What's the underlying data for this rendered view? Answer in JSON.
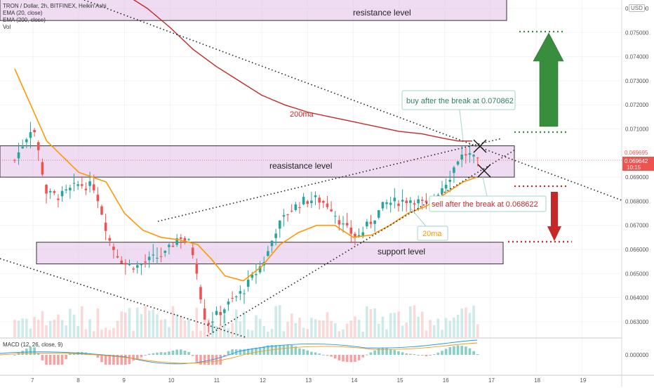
{
  "header": {
    "title": "TRON / Dollar, 2h, BITFINEX, Heikin Ashi",
    "ema20": "EMA (20, close)",
    "ema200": "EMA (200, close)",
    "vol": "Vol",
    "macd": "MACD (12, 26, close, 9)",
    "currency": "USD"
  },
  "annotations": {
    "resistance_top": "resistance level",
    "resistance_mid": "reasistance level",
    "support": "support level",
    "ma200": "200ma",
    "ma20": "20ma",
    "buy": "buy after the break at 0.070862",
    "sell": "sell after the break at 0.068622"
  },
  "price_tags": {
    "last": "0.069695",
    "ma": "0.069642",
    "countdown": "10:15"
  },
  "colors": {
    "up": "#26a69a",
    "down": "#ef5350",
    "ema20": "#ff9800",
    "ema200": "#c62828",
    "zone": "#e1bee7",
    "zone_border": "#333333",
    "arrow_up": "#388e3c",
    "arrow_down": "#c62828"
  },
  "chart_data": [
    {
      "type": "candlestick",
      "title": "TRON / Dollar, 2h, BITFINEX, Heikin Ashi",
      "x_tick_labels": [
        "7",
        "8",
        "9",
        "10",
        "11",
        "12",
        "13",
        "14",
        "15",
        "16",
        "17",
        "18",
        "19"
      ],
      "y_tick_labels": [
        "0.076000",
        "0.075000",
        "0.074000",
        "0.073000",
        "0.072000",
        "0.071000",
        "0.069000",
        "0.068000",
        "0.067000",
        "0.066000",
        "0.065000",
        "0.064000",
        "0.063000"
      ],
      "y_range": [
        0.0623,
        0.0767
      ],
      "anchor_series": {
        "name": "close",
        "x_day": [
          6.6,
          7.0,
          7.3,
          7.6,
          8.0,
          8.35,
          8.7,
          9.0,
          9.3,
          9.6,
          9.9,
          10.2,
          10.45,
          10.6,
          10.7,
          10.8,
          11.2,
          11.6,
          11.9,
          12.1,
          12.3,
          12.6,
          12.9,
          13.2,
          13.5,
          13.8,
          14.1,
          14.4,
          14.7,
          15.0,
          15.3,
          15.6,
          15.9,
          16.1,
          16.3,
          16.5,
          16.7
        ],
        "close": [
          0.0697,
          0.0712,
          0.0683,
          0.0682,
          0.0687,
          0.0686,
          0.0662,
          0.0654,
          0.0653,
          0.0656,
          0.0658,
          0.0666,
          0.0662,
          0.065,
          0.0636,
          0.0629,
          0.0636,
          0.0643,
          0.0651,
          0.0657,
          0.0668,
          0.0676,
          0.068,
          0.0681,
          0.0678,
          0.0669,
          0.0665,
          0.0672,
          0.0679,
          0.068,
          0.0681,
          0.0678,
          0.0685,
          0.069,
          0.0698,
          0.07,
          0.0696
        ]
      },
      "ema20": {
        "x_day": [
          6.6,
          7.3,
          8.0,
          8.6,
          9.0,
          9.4,
          9.8,
          10.2,
          10.6,
          10.9,
          11.2,
          11.6,
          12.0,
          12.4,
          12.8,
          13.2,
          13.6,
          14.0,
          14.4,
          14.8,
          15.2,
          15.6,
          16.0,
          16.4,
          16.7
        ],
        "value": [
          0.0735,
          0.0705,
          0.0692,
          0.0688,
          0.0675,
          0.0668,
          0.0665,
          0.0664,
          0.0662,
          0.0656,
          0.0649,
          0.0647,
          0.0653,
          0.0662,
          0.0667,
          0.067,
          0.067,
          0.0665,
          0.0666,
          0.067,
          0.0675,
          0.0678,
          0.0683,
          0.0688,
          0.069
        ]
      },
      "ema200": {
        "x_day": [
          8.5,
          9.0,
          9.5,
          10.0,
          10.5,
          11.0,
          11.5,
          12.0,
          12.5,
          13.0,
          13.5,
          14.0,
          14.5,
          15.0,
          15.5,
          16.0,
          16.3,
          16.6
        ],
        "value": [
          0.0775,
          0.0766,
          0.076,
          0.0752,
          0.0743,
          0.0736,
          0.073,
          0.0724,
          0.072,
          0.0717,
          0.0715,
          0.0713,
          0.0711,
          0.0709,
          0.0708,
          0.0706,
          0.0705,
          0.0705
        ]
      },
      "zones": [
        {
          "name": "resistance level",
          "y_top": 0.0776,
          "y_bottom": 0.0755
        },
        {
          "name": "reasistance level",
          "y_top": 0.0703,
          "y_bottom": 0.069
        },
        {
          "name": "support level",
          "y_top": 0.0663,
          "y_bottom": 0.0654
        }
      ],
      "targets": {
        "buy": 0.070862,
        "sell": 0.068622,
        "upper_target": 0.075,
        "lower_target": 0.0663
      }
    },
    {
      "type": "bar",
      "title": "MACD (12, 26, close, 9)",
      "y_tick_labels": [
        "0.000000"
      ],
      "note": "histogram and signal lines"
    }
  ]
}
